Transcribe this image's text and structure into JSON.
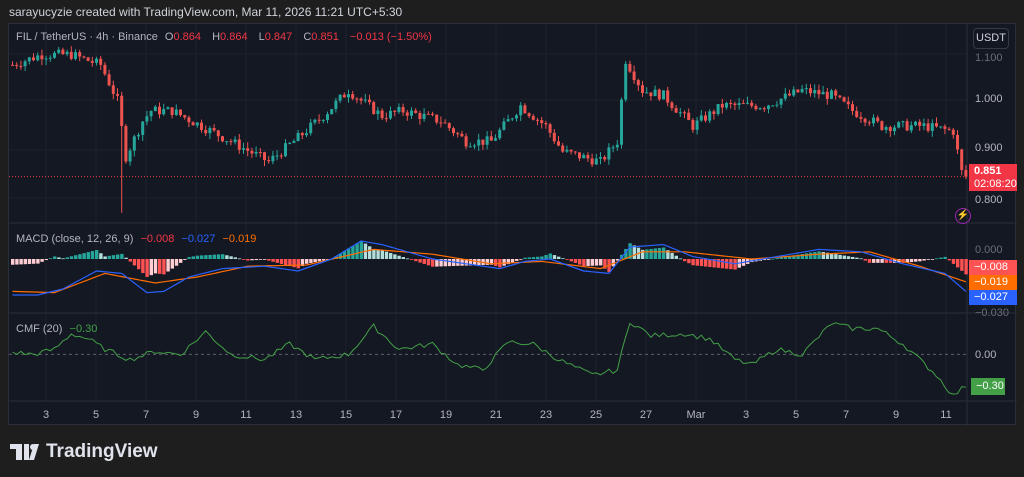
{
  "credit": "sarayucyzie created with TradingView.com, Mar 11, 2026 11:21 UTC+5:30",
  "symbol": {
    "name": "FIL / TetherUS · 4h · Binance",
    "o_label": "O",
    "o": "0.864",
    "h_label": "H",
    "h": "0.864",
    "l_label": "L",
    "l": "0.847",
    "c_label": "C",
    "c": "0.851",
    "change": "−0.013 (−1.50%)"
  },
  "currency_button": "USDT",
  "price_axis": [
    "1.100",
    "1.000",
    "0.900",
    "0.800"
  ],
  "last_price": {
    "value": "0.851",
    "countdown": "02:08:20"
  },
  "macd": {
    "label": "MACD (close, 12, 26, 9)",
    "hist": "−0.008",
    "macd": "−0.027",
    "signal": "−0.019",
    "axis": [
      "0.000",
      "−0.030"
    ]
  },
  "cmf": {
    "label": "CMF (20)",
    "value": "−0.30",
    "axis": "0.00"
  },
  "time_axis": [
    "3",
    "5",
    "7",
    "9",
    "11",
    "13",
    "15",
    "17",
    "19",
    "21",
    "23",
    "25",
    "27",
    "Mar",
    "3",
    "5",
    "7",
    "9",
    "11"
  ],
  "brand": "TradingView",
  "colors": {
    "up": "#26a69a",
    "down": "#ef5350",
    "macd": "#2962ff",
    "signal": "#ff6d00",
    "cmf": "#43a047"
  },
  "chart_data": {
    "type": "candlestick",
    "candles": 228,
    "price_keypoints": [
      [
        0,
        1.07
      ],
      [
        7,
        1.09
      ],
      [
        14,
        1.09
      ],
      [
        21,
        1.07
      ],
      [
        25,
        1.0
      ],
      [
        27,
        0.89
      ],
      [
        31,
        0.96
      ],
      [
        33,
        0.98
      ],
      [
        38,
        0.98
      ],
      [
        45,
        0.95
      ],
      [
        52,
        0.92
      ],
      [
        61,
        0.88
      ],
      [
        67,
        0.92
      ],
      [
        74,
        0.97
      ],
      [
        80,
        1.02
      ],
      [
        83,
        1.0
      ],
      [
        88,
        0.97
      ],
      [
        93,
        0.98
      ],
      [
        102,
        0.96
      ],
      [
        108,
        0.92
      ],
      [
        114,
        0.92
      ],
      [
        121,
        0.99
      ],
      [
        127,
        0.95
      ],
      [
        131,
        0.9
      ],
      [
        140,
        0.88
      ],
      [
        144,
        0.92
      ],
      [
        146,
        1.08
      ],
      [
        150,
        1.02
      ],
      [
        155,
        1.01
      ],
      [
        162,
        0.95
      ],
      [
        169,
        0.99
      ],
      [
        179,
        0.99
      ],
      [
        188,
        1.02
      ],
      [
        195,
        1.01
      ],
      [
        200,
        0.98
      ],
      [
        207,
        0.95
      ],
      [
        217,
        0.95
      ],
      [
        224,
        0.94
      ],
      [
        226,
        0.86
      ],
      [
        227,
        0.851
      ]
    ],
    "price_range": [
      0.76,
      1.15
    ],
    "macd_keypoints": [
      [
        0,
        -0.03
      ],
      [
        6,
        -0.03
      ],
      [
        12,
        -0.025
      ],
      [
        20,
        -0.01
      ],
      [
        26,
        -0.012
      ],
      [
        32,
        -0.028
      ],
      [
        36,
        -0.027
      ],
      [
        42,
        -0.015
      ],
      [
        50,
        -0.008
      ],
      [
        60,
        -0.006
      ],
      [
        68,
        -0.01
      ],
      [
        76,
        0.0
      ],
      [
        83,
        0.015
      ],
      [
        88,
        0.012
      ],
      [
        100,
        0.0
      ],
      [
        110,
        -0.005
      ],
      [
        116,
        -0.008
      ],
      [
        122,
        -0.002
      ],
      [
        128,
        0.0
      ],
      [
        136,
        -0.01
      ],
      [
        142,
        -0.012
      ],
      [
        147,
        0.01
      ],
      [
        155,
        0.012
      ],
      [
        162,
        0.002
      ],
      [
        172,
        -0.004
      ],
      [
        182,
        0.002
      ],
      [
        192,
        0.008
      ],
      [
        202,
        0.006
      ],
      [
        212,
        -0.004
      ],
      [
        222,
        -0.012
      ],
      [
        227,
        -0.027
      ]
    ],
    "signal_keypoints": [
      [
        0,
        -0.027
      ],
      [
        10,
        -0.028
      ],
      [
        22,
        -0.012
      ],
      [
        34,
        -0.02
      ],
      [
        44,
        -0.015
      ],
      [
        56,
        -0.006
      ],
      [
        70,
        -0.005
      ],
      [
        86,
        0.008
      ],
      [
        100,
        0.004
      ],
      [
        114,
        -0.004
      ],
      [
        126,
        -0.002
      ],
      [
        140,
        -0.008
      ],
      [
        150,
        0.006
      ],
      [
        160,
        0.006
      ],
      [
        176,
        0.0
      ],
      [
        192,
        0.004
      ],
      [
        204,
        0.006
      ],
      [
        216,
        -0.006
      ],
      [
        227,
        -0.019
      ]
    ],
    "cmf_keypoints": [
      [
        0,
        0.02
      ],
      [
        5,
        0.0
      ],
      [
        10,
        0.05
      ],
      [
        14,
        0.2
      ],
      [
        18,
        0.15
      ],
      [
        22,
        0.05
      ],
      [
        28,
        -0.05
      ],
      [
        34,
        0.03
      ],
      [
        40,
        0.0
      ],
      [
        46,
        0.22
      ],
      [
        52,
        0.0
      ],
      [
        60,
        -0.05
      ],
      [
        66,
        0.1
      ],
      [
        72,
        -0.05
      ],
      [
        80,
        0.0
      ],
      [
        86,
        0.27
      ],
      [
        92,
        0.05
      ],
      [
        100,
        0.1
      ],
      [
        106,
        -0.1
      ],
      [
        112,
        -0.15
      ],
      [
        118,
        0.12
      ],
      [
        124,
        0.1
      ],
      [
        130,
        -0.05
      ],
      [
        138,
        -0.2
      ],
      [
        144,
        -0.15
      ],
      [
        147,
        0.32
      ],
      [
        152,
        0.18
      ],
      [
        160,
        0.2
      ],
      [
        166,
        0.15
      ],
      [
        172,
        -0.05
      ],
      [
        176,
        -0.1
      ],
      [
        182,
        0.05
      ],
      [
        188,
        0.0
      ],
      [
        195,
        0.3
      ],
      [
        200,
        0.25
      ],
      [
        206,
        0.25
      ],
      [
        212,
        0.1
      ],
      [
        216,
        -0.05
      ],
      [
        220,
        -0.2
      ],
      [
        224,
        -0.4
      ],
      [
        227,
        -0.3
      ]
    ],
    "macd_range": [
      -0.045,
      0.03
    ],
    "cmf_range": [
      -0.45,
      0.4
    ]
  }
}
